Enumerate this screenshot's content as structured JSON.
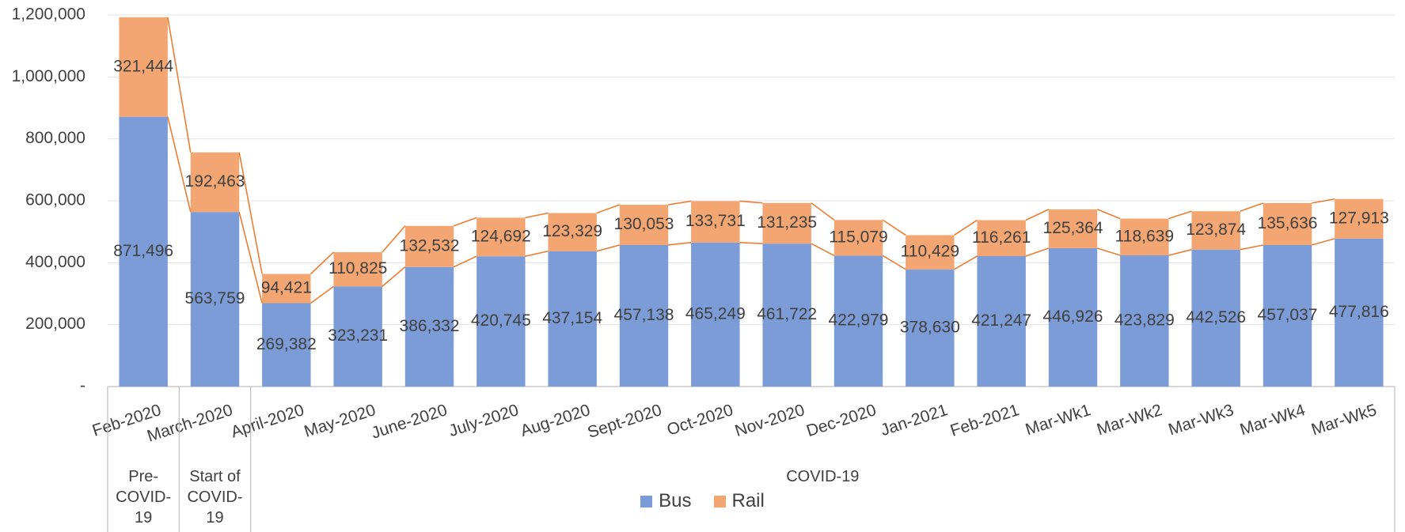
{
  "chart_data": {
    "type": "stacked_bar",
    "categories": [
      "Feb-2020",
      "March-2020",
      "April-2020",
      "May-2020",
      "June-2020",
      "July-2020",
      "Aug-2020",
      "Sept-2020",
      "Oct-2020",
      "Nov-2020",
      "Dec-2020",
      "Jan-2021",
      "Feb-2021",
      "Mar-Wk1",
      "Mar-Wk2",
      "Mar-Wk3",
      "Mar-Wk4",
      "Mar-Wk5"
    ],
    "series": [
      {
        "name": "Bus",
        "color": "#7b9cd6",
        "values": [
          871496,
          563759,
          269382,
          323231,
          386332,
          420745,
          437154,
          457138,
          465249,
          461722,
          422979,
          378630,
          421247,
          446926,
          423829,
          442526,
          457037,
          477816
        ],
        "value_labels": [
          "871,496",
          "563,759",
          "269,382",
          "323,231",
          "386,332",
          "420,745",
          "437,154",
          "457,138",
          "465,249",
          "461,722",
          "422,979",
          "378,630",
          "421,247",
          "446,926",
          "423,829",
          "442,526",
          "457,037",
          "477,816"
        ]
      },
      {
        "name": "Rail",
        "color": "#f4a672",
        "values": [
          321444,
          192463,
          94421,
          110825,
          132532,
          124692,
          123329,
          130053,
          133731,
          131235,
          115079,
          110429,
          116261,
          125364,
          118639,
          123874,
          135636,
          127913
        ],
        "value_labels": [
          "321,444",
          "192,463",
          "94,421",
          "110,825",
          "132,532",
          "124,692",
          "123,329",
          "130,053",
          "133,731",
          "131,235",
          "115,079",
          "110,429",
          "116,261",
          "125,364",
          "118,639",
          "123,874",
          "135,636",
          "127,913"
        ]
      }
    ],
    "category_groups": [
      {
        "label": "Pre-COVID-19",
        "from": "Feb-2020",
        "to": "Feb-2020"
      },
      {
        "label": "Start of COVID-19",
        "from": "March-2020",
        "to": "March-2020"
      },
      {
        "label": "COVID-19",
        "from": "April-2020",
        "to": "Mar-Wk5"
      }
    ],
    "ylim": [
      0,
      1200000
    ],
    "yticks": [
      {
        "value": 0,
        "label": "-"
      },
      {
        "value": 200000,
        "label": "200,000"
      },
      {
        "value": 400000,
        "label": "400,000"
      },
      {
        "value": 600000,
        "label": "600,000"
      },
      {
        "value": 800000,
        "label": "800,000"
      },
      {
        "value": 1000000,
        "label": "1,000,000"
      },
      {
        "value": 1200000,
        "label": "1,200,000"
      }
    ],
    "grid": true,
    "connector_color": "#ed7d31",
    "legend": "bottom"
  }
}
